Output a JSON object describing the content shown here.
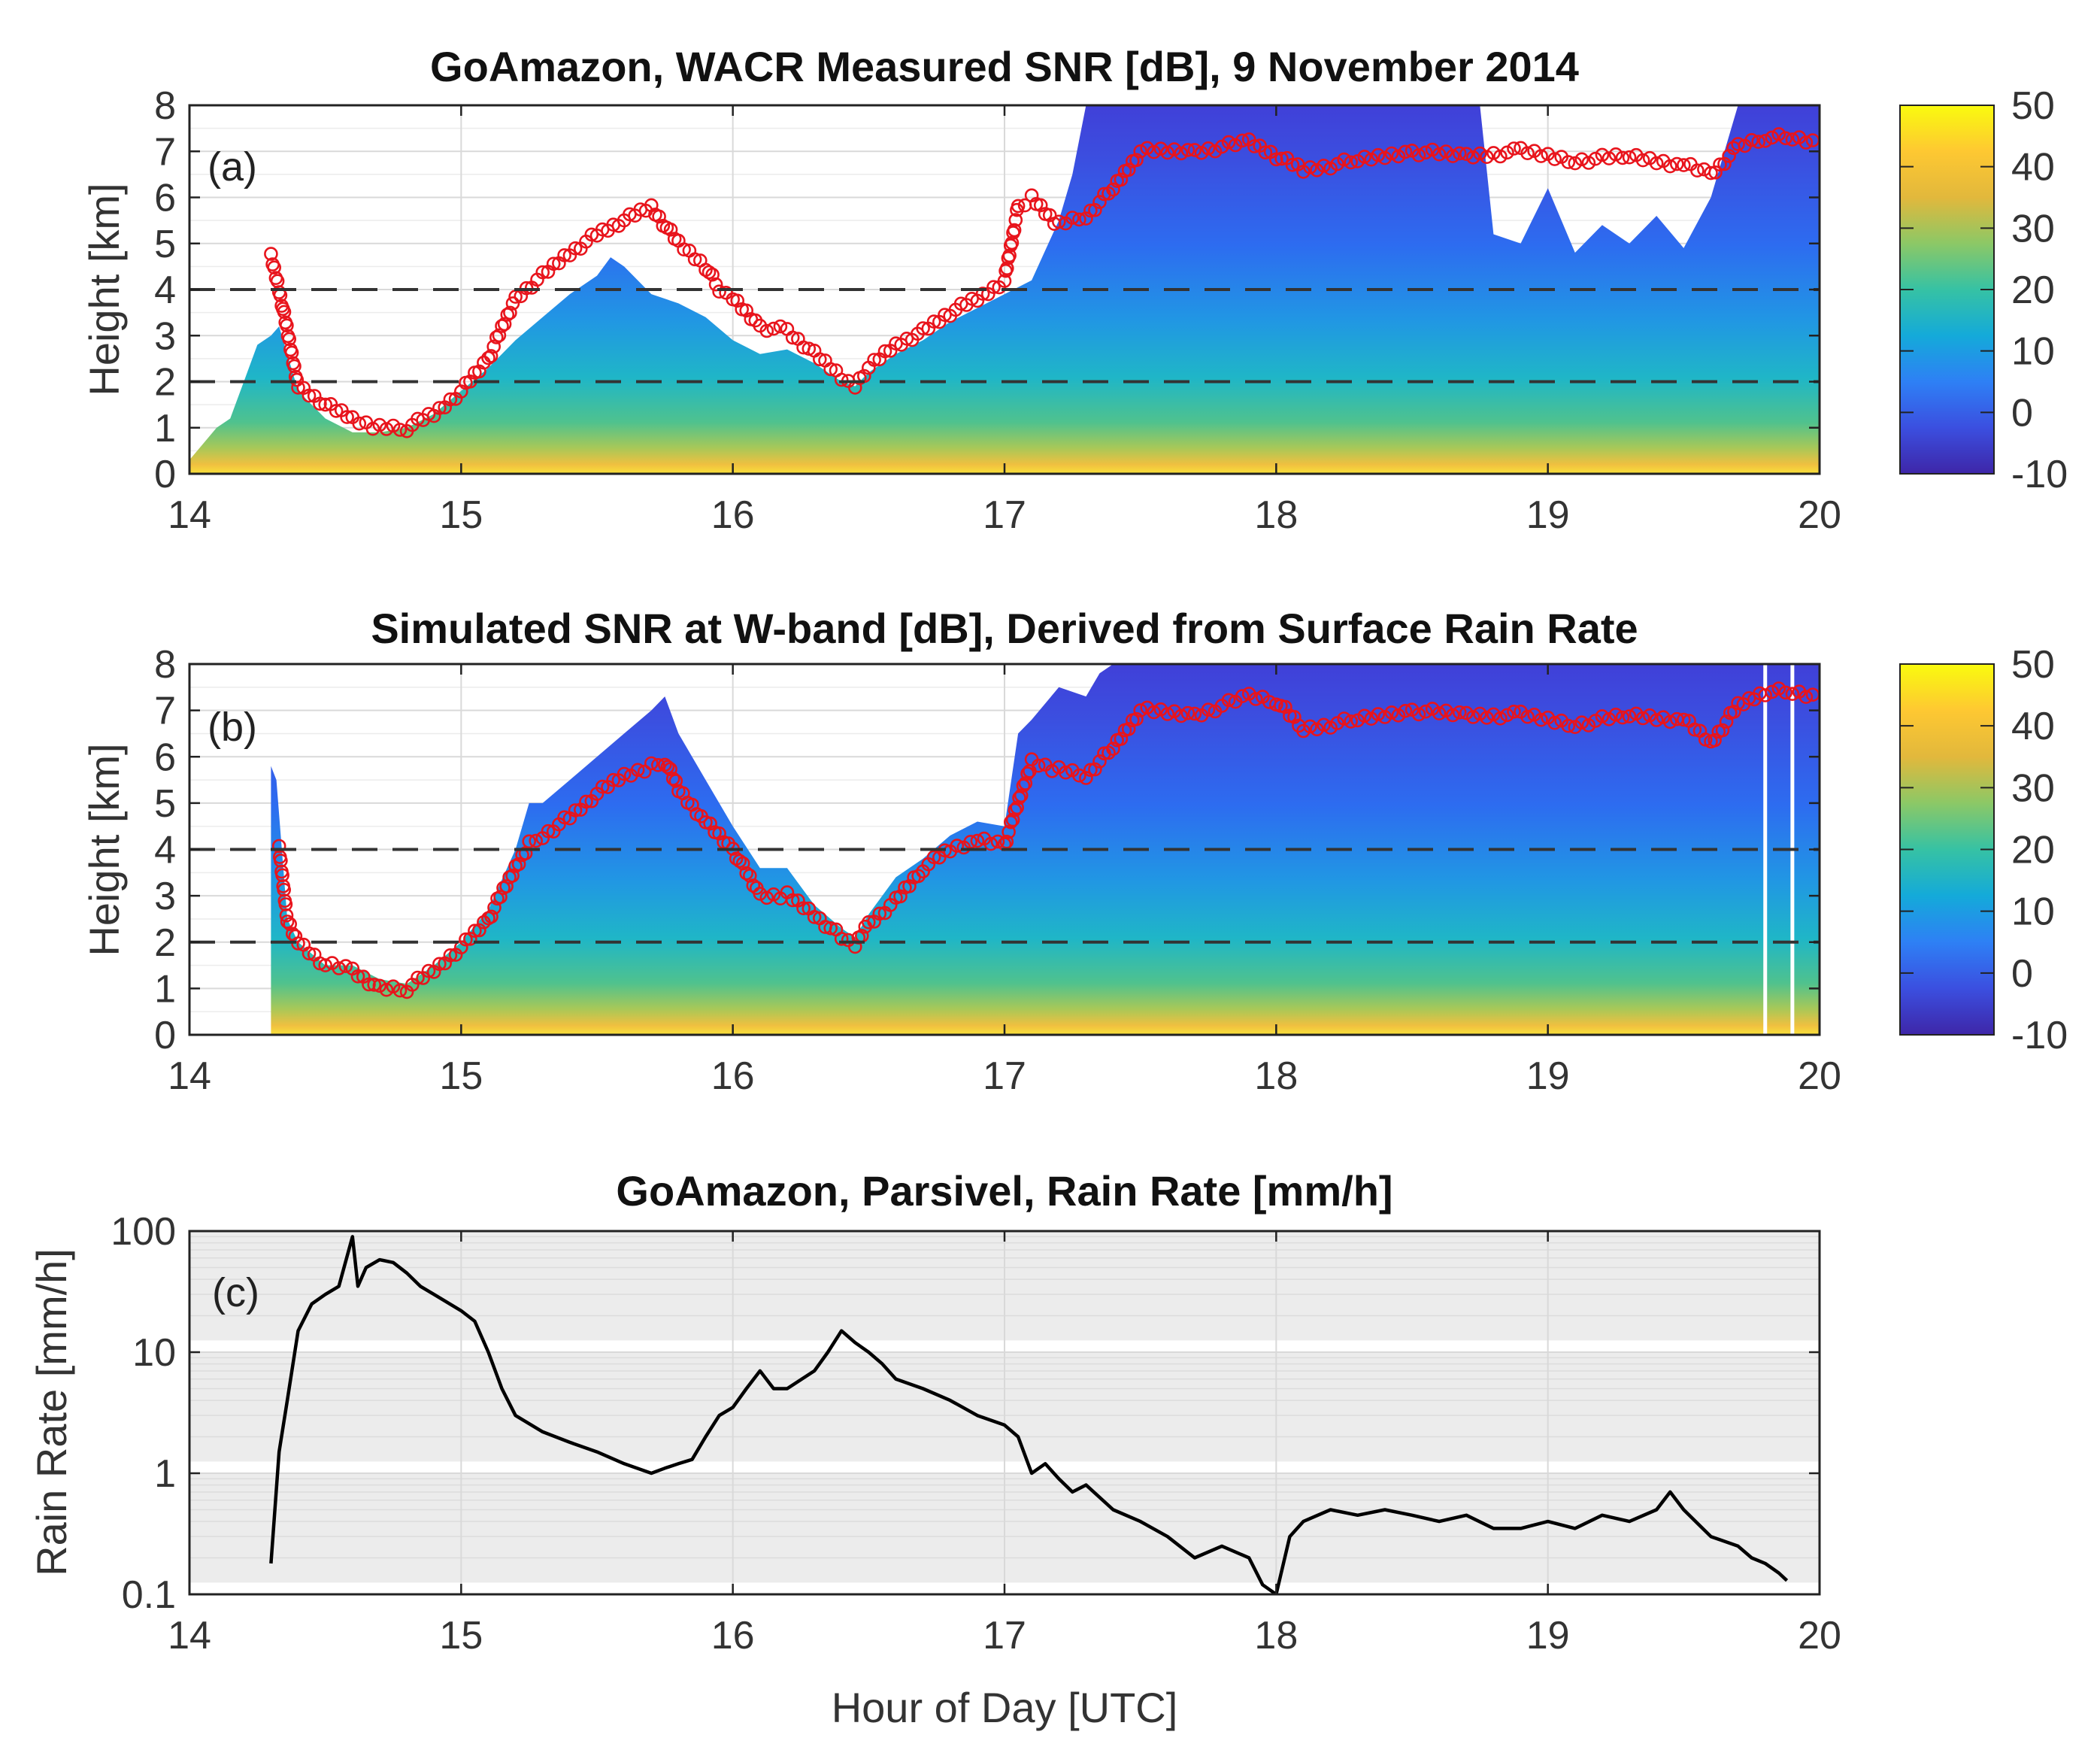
{
  "figure": {
    "xlabel": "Hour of Day [UTC]",
    "colors": {
      "ring": "#e8141c",
      "line": "#000000",
      "dashed": "#333333",
      "grid": "#d9d9d9",
      "band": "#ececec"
    }
  },
  "chart_data": [
    {
      "type": "heatmap",
      "panel_label": "(a)",
      "title": "GoAmazon, WACR Measured SNR [dB], 9 November 2014",
      "xlabel": "",
      "ylabel": "Height [km]",
      "xlim": [
        14,
        20
      ],
      "ylim": [
        0,
        8
      ],
      "xticks": [
        14,
        15,
        16,
        17,
        18,
        19,
        20
      ],
      "yticks": [
        0,
        1,
        2,
        3,
        4,
        5,
        6,
        7,
        8
      ],
      "dashed_lines_km": [
        2,
        4
      ],
      "colorbar": {
        "range": [
          -10,
          50
        ],
        "ticks": [
          -10,
          0,
          10,
          20,
          30,
          40,
          50
        ],
        "colormap": [
          "#3e26a8",
          "#3b4fe0",
          "#2e80f5",
          "#14aad9",
          "#36c2a4",
          "#8cc866",
          "#e2b83c",
          "#fec832",
          "#f9fb0e"
        ]
      },
      "echo_top_km": {
        "x": [
          14.0,
          14.1,
          14.15,
          14.2,
          14.25,
          14.3,
          14.33,
          14.4,
          14.5,
          14.6,
          14.7,
          14.8,
          14.9,
          15.0,
          15.1,
          15.2,
          15.3,
          15.4,
          15.5,
          15.55,
          15.6,
          15.7,
          15.8,
          15.9,
          16.0,
          16.1,
          16.2,
          16.3,
          16.4,
          16.45,
          16.5,
          16.6,
          16.7,
          16.8,
          16.9,
          17.0,
          17.1,
          17.2,
          17.25,
          17.3,
          17.35,
          17.5,
          18.0,
          18.5,
          18.75,
          18.8,
          18.9,
          19.0,
          19.1,
          19.2,
          19.3,
          19.4,
          19.5,
          19.6,
          19.7,
          19.8,
          19.9,
          20.0
        ],
        "y": [
          0.3,
          1.0,
          1.2,
          2.0,
          2.8,
          3.0,
          3.2,
          1.8,
          1.2,
          0.9,
          0.9,
          1.0,
          1.3,
          1.8,
          2.3,
          2.9,
          3.4,
          3.9,
          4.3,
          4.7,
          4.5,
          3.9,
          3.7,
          3.4,
          2.9,
          2.6,
          2.7,
          2.4,
          2.0,
          1.9,
          2.2,
          2.6,
          2.9,
          3.3,
          3.6,
          3.9,
          4.2,
          5.5,
          6.5,
          8.0,
          8.0,
          8.0,
          8.0,
          8.0,
          8.0,
          5.2,
          5.0,
          6.2,
          4.8,
          5.4,
          5.0,
          5.6,
          4.9,
          6.0,
          8.0,
          8.0,
          8.0,
          8.0
        ]
      },
      "rings_km": {
        "x": [
          14.3,
          14.33,
          14.4,
          14.5,
          14.6,
          14.7,
          14.8,
          14.9,
          15.0,
          15.1,
          15.2,
          15.3,
          15.4,
          15.5,
          15.6,
          15.7,
          15.8,
          15.9,
          15.95,
          16.0,
          16.1,
          16.2,
          16.3,
          16.4,
          16.45,
          16.5,
          16.6,
          16.7,
          16.8,
          16.9,
          17.0,
          17.05,
          17.1,
          17.2,
          17.3,
          17.4,
          17.5,
          17.7,
          17.9,
          18.0,
          18.1,
          18.3,
          18.5,
          18.7,
          18.9,
          19.1,
          19.3,
          19.5,
          19.6,
          19.7,
          19.8,
          19.9,
          20.0
        ],
        "y": [
          4.7,
          4.0,
          1.9,
          1.5,
          1.2,
          1.0,
          1.0,
          1.3,
          1.8,
          2.5,
          3.8,
          4.3,
          4.8,
          5.2,
          5.5,
          5.8,
          5.0,
          4.5,
          4.0,
          3.8,
          3.2,
          3.1,
          2.6,
          2.1,
          1.9,
          2.3,
          2.8,
          3.1,
          3.5,
          3.8,
          4.2,
          5.8,
          6.0,
          5.4,
          5.6,
          6.2,
          7.0,
          7.0,
          7.2,
          6.9,
          6.6,
          6.8,
          7.0,
          6.9,
          7.0,
          6.8,
          6.9,
          6.7,
          6.5,
          7.1,
          7.3,
          7.3,
          7.2
        ]
      }
    },
    {
      "type": "heatmap",
      "panel_label": "(b)",
      "title": "Simulated SNR at W-band [dB], Derived from Surface Rain Rate",
      "xlabel": "",
      "ylabel": "Height [km]",
      "xlim": [
        14,
        20
      ],
      "ylim": [
        0,
        8
      ],
      "xticks": [
        14,
        15,
        16,
        17,
        18,
        19,
        20
      ],
      "yticks": [
        0,
        1,
        2,
        3,
        4,
        5,
        6,
        7,
        8
      ],
      "dashed_lines_km": [
        2,
        4
      ],
      "colorbar": {
        "range": [
          -10,
          50
        ],
        "ticks": [
          -10,
          0,
          10,
          20,
          30,
          40,
          50
        ],
        "colormap": [
          "#3e26a8",
          "#3b4fe0",
          "#2e80f5",
          "#14aad9",
          "#36c2a4",
          "#8cc866",
          "#e2b83c",
          "#fec832",
          "#f9fb0e"
        ]
      },
      "echo_top_km": {
        "x": [
          14.3,
          14.32,
          14.36,
          14.4,
          14.5,
          14.6,
          14.7,
          14.8,
          14.9,
          15.0,
          15.1,
          15.2,
          15.25,
          15.3,
          15.4,
          15.5,
          15.6,
          15.7,
          15.75,
          15.8,
          15.9,
          16.0,
          16.1,
          16.2,
          16.3,
          16.4,
          16.45,
          16.5,
          16.6,
          16.7,
          16.8,
          16.9,
          17.0,
          17.05,
          17.1,
          17.2,
          17.3,
          17.35,
          17.4,
          17.45,
          20.0
        ],
        "y": [
          5.8,
          5.5,
          2.5,
          2.0,
          1.5,
          1.5,
          1.2,
          1.1,
          1.5,
          2.0,
          2.7,
          4.0,
          5.0,
          5.0,
          5.5,
          6.0,
          6.5,
          7.0,
          7.3,
          6.5,
          5.5,
          4.5,
          3.6,
          3.6,
          2.8,
          2.3,
          2.1,
          2.6,
          3.4,
          3.8,
          4.3,
          4.6,
          4.5,
          6.5,
          6.8,
          7.5,
          7.3,
          7.8,
          8.0,
          8.0,
          8.0
        ]
      },
      "rings_km": {
        "x": [
          14.33,
          14.36,
          14.4,
          14.5,
          14.6,
          14.7,
          14.8,
          14.9,
          15.0,
          15.1,
          15.2,
          15.25,
          15.3,
          15.4,
          15.5,
          15.6,
          15.7,
          15.75,
          15.8,
          15.9,
          16.0,
          16.1,
          16.2,
          16.3,
          16.4,
          16.45,
          16.5,
          16.6,
          16.7,
          16.8,
          16.9,
          17.0,
          17.1,
          17.2,
          17.3,
          17.4,
          17.5,
          17.7,
          17.9,
          18.0,
          18.1,
          18.3,
          18.5,
          18.7,
          18.9,
          19.1,
          19.3,
          19.5,
          19.6,
          19.7,
          19.8,
          19.9,
          20.0
        ],
        "y": [
          4.0,
          2.5,
          2.0,
          1.5,
          1.4,
          1.0,
          1.0,
          1.4,
          1.9,
          2.5,
          3.6,
          4.1,
          4.3,
          4.7,
          5.2,
          5.6,
          5.8,
          5.9,
          5.3,
          4.6,
          4.0,
          3.0,
          3.0,
          2.6,
          2.1,
          1.9,
          2.4,
          2.9,
          3.6,
          4.0,
          4.2,
          4.1,
          5.9,
          5.7,
          5.6,
          6.2,
          7.0,
          6.9,
          7.3,
          7.2,
          6.6,
          6.8,
          7.0,
          6.9,
          6.9,
          6.7,
          6.9,
          6.8,
          6.3,
          7.1,
          7.4,
          7.4,
          7.3
        ]
      },
      "gap_lines_hour": [
        19.8,
        19.9
      ]
    },
    {
      "type": "line",
      "panel_label": "(c)",
      "title": "GoAmazon, Parsivel, Rain Rate [mm/h]",
      "xlabel": "Hour of Day [UTC]",
      "ylabel": "Rain Rate [mm/h]",
      "yscale": "log",
      "xlim": [
        14,
        20
      ],
      "ylim": [
        0.1,
        100
      ],
      "xticks": [
        14,
        15,
        16,
        17,
        18,
        19,
        20
      ],
      "yticks": [
        0.1,
        1,
        10,
        100
      ],
      "ytick_labels": [
        "0.1",
        "1",
        "10",
        "100"
      ],
      "series": [
        {
          "name": "Rain Rate",
          "x": [
            14.3,
            14.33,
            14.36,
            14.4,
            14.45,
            14.5,
            14.55,
            14.6,
            14.62,
            14.65,
            14.7,
            14.75,
            14.8,
            14.85,
            14.9,
            15.0,
            15.05,
            15.1,
            15.15,
            15.2,
            15.3,
            15.4,
            15.5,
            15.6,
            15.7,
            15.75,
            15.8,
            15.85,
            15.9,
            15.95,
            16.0,
            16.05,
            16.1,
            16.15,
            16.2,
            16.3,
            16.35,
            16.4,
            16.45,
            16.5,
            16.55,
            16.6,
            16.7,
            16.8,
            16.9,
            17.0,
            17.05,
            17.1,
            17.15,
            17.2,
            17.25,
            17.3,
            17.4,
            17.5,
            17.6,
            17.7,
            17.8,
            17.9,
            17.95,
            18.0,
            18.05,
            18.1,
            18.2,
            18.3,
            18.4,
            18.5,
            18.6,
            18.7,
            18.8,
            18.9,
            19.0,
            19.1,
            19.2,
            19.3,
            19.4,
            19.45,
            19.5,
            19.6,
            19.7,
            19.75,
            19.8,
            19.85,
            19.88
          ],
          "values": [
            0.18,
            1.5,
            4,
            15,
            25,
            30,
            35,
            90,
            35,
            50,
            58,
            55,
            45,
            35,
            30,
            22,
            18,
            10,
            5,
            3,
            2.2,
            1.8,
            1.5,
            1.2,
            1.0,
            1.1,
            1.2,
            1.3,
            2.0,
            3.0,
            3.5,
            5.0,
            7.0,
            5.0,
            5.0,
            7.0,
            10,
            15,
            12,
            10,
            8,
            6,
            5,
            4.0,
            3.0,
            2.5,
            2.0,
            1.0,
            1.2,
            0.9,
            0.7,
            0.8,
            0.5,
            0.4,
            0.3,
            0.2,
            0.25,
            0.2,
            0.12,
            0.1,
            0.3,
            0.4,
            0.5,
            0.45,
            0.5,
            0.45,
            0.4,
            0.45,
            0.35,
            0.35,
            0.4,
            0.35,
            0.45,
            0.4,
            0.5,
            0.7,
            0.5,
            0.3,
            0.25,
            0.2,
            0.18,
            0.15,
            0.13
          ]
        }
      ]
    }
  ]
}
